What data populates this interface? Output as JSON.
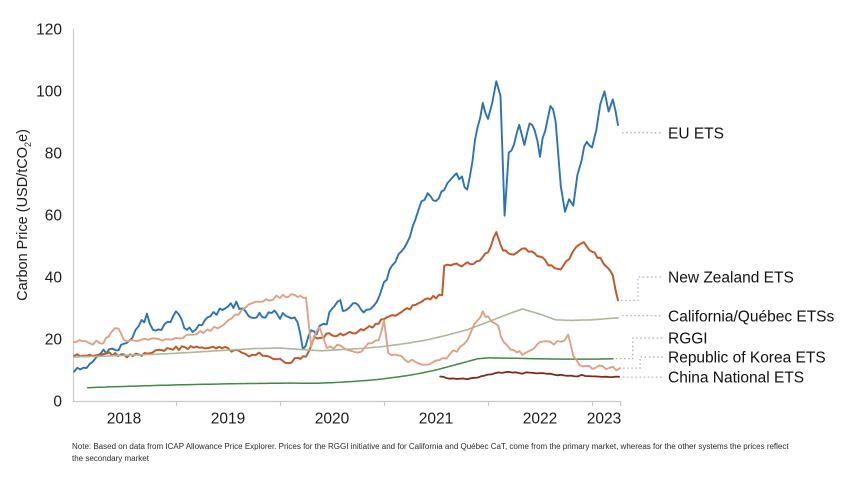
{
  "chart_data": {
    "type": "line",
    "title": "",
    "xlabel": "",
    "ylabel": "Carbon Price (USD/tCO2e)",
    "ylabel_parts": {
      "pre": "Carbon Price (USD/tCO",
      "sub": "2",
      "post": "e)"
    },
    "ylim": [
      0,
      120
    ],
    "xlim": [
      2018.0,
      2023.3
    ],
    "grid": false,
    "legend_position": "right-callouts",
    "y_ticks": [
      0,
      20,
      40,
      60,
      80,
      100,
      120
    ],
    "x_tick_marks": [
      2019,
      2020,
      2021,
      2022,
      2023,
      2023.27
    ],
    "x_tick_labels": [
      {
        "label": "2018",
        "pos": 2018.5
      },
      {
        "label": "2019",
        "pos": 2019.5
      },
      {
        "label": "2020",
        "pos": 2020.5
      },
      {
        "label": "2021",
        "pos": 2021.5
      },
      {
        "label": "2022",
        "pos": 2022.5
      },
      {
        "label": "2023",
        "pos": 2023.115
      }
    ],
    "series": [
      {
        "name": "EU ETS",
        "color": "#2b73b7",
        "width": 1.9,
        "noise": 1.3,
        "points": [
          [
            2018.02,
            9.5
          ],
          [
            2018.08,
            11
          ],
          [
            2018.17,
            12
          ],
          [
            2018.25,
            14
          ],
          [
            2018.33,
            16
          ],
          [
            2018.42,
            17
          ],
          [
            2018.5,
            18.5
          ],
          [
            2018.58,
            21
          ],
          [
            2018.67,
            25
          ],
          [
            2018.72,
            28
          ],
          [
            2018.78,
            22
          ],
          [
            2018.83,
            23
          ],
          [
            2018.92,
            25
          ],
          [
            2019,
            28
          ],
          [
            2019.08,
            24
          ],
          [
            2019.13,
            22.5
          ],
          [
            2019.25,
            25
          ],
          [
            2019.33,
            28
          ],
          [
            2019.42,
            29
          ],
          [
            2019.5,
            30
          ],
          [
            2019.58,
            31.5
          ],
          [
            2019.67,
            29
          ],
          [
            2019.75,
            27
          ],
          [
            2019.83,
            28
          ],
          [
            2019.92,
            28.5
          ],
          [
            2020,
            27
          ],
          [
            2020.08,
            28
          ],
          [
            2020.17,
            26
          ],
          [
            2020.22,
            17.5
          ],
          [
            2020.3,
            22
          ],
          [
            2020.38,
            23
          ],
          [
            2020.45,
            26
          ],
          [
            2020.5,
            30
          ],
          [
            2020.58,
            32
          ],
          [
            2020.63,
            28
          ],
          [
            2020.7,
            31
          ],
          [
            2020.78,
            30
          ],
          [
            2020.83,
            28.5
          ],
          [
            2020.9,
            31
          ],
          [
            2020.96,
            34
          ],
          [
            2021,
            38
          ],
          [
            2021.08,
            44
          ],
          [
            2021.17,
            48
          ],
          [
            2021.25,
            53
          ],
          [
            2021.33,
            62
          ],
          [
            2021.42,
            66
          ],
          [
            2021.5,
            64
          ],
          [
            2021.58,
            68
          ],
          [
            2021.67,
            73
          ],
          [
            2021.75,
            72
          ],
          [
            2021.8,
            68
          ],
          [
            2021.85,
            78
          ],
          [
            2021.9,
            88
          ],
          [
            2021.95,
            95
          ],
          [
            2022,
            90
          ],
          [
            2022.04,
            97
          ],
          [
            2022.08,
            104
          ],
          [
            2022.12,
            98
          ],
          [
            2022.16,
            60
          ],
          [
            2022.2,
            80
          ],
          [
            2022.25,
            84
          ],
          [
            2022.3,
            88
          ],
          [
            2022.35,
            82
          ],
          [
            2022.4,
            90
          ],
          [
            2022.45,
            86
          ],
          [
            2022.5,
            80
          ],
          [
            2022.55,
            87
          ],
          [
            2022.6,
            96
          ],
          [
            2022.65,
            90
          ],
          [
            2022.7,
            70
          ],
          [
            2022.74,
            62
          ],
          [
            2022.78,
            66
          ],
          [
            2022.82,
            64
          ],
          [
            2022.86,
            72
          ],
          [
            2022.9,
            78
          ],
          [
            2022.95,
            84
          ],
          [
            2023,
            82
          ],
          [
            2023.04,
            88
          ],
          [
            2023.08,
            96
          ],
          [
            2023.12,
            99
          ],
          [
            2023.16,
            94
          ],
          [
            2023.2,
            97
          ],
          [
            2023.25,
            89
          ]
        ]
      },
      {
        "name": "New Zealand ETS",
        "color": "#c05a2d",
        "width": 2.0,
        "noise": 0.6,
        "points": [
          [
            2018.02,
            14.5
          ],
          [
            2018.17,
            15
          ],
          [
            2018.33,
            15.5
          ],
          [
            2018.5,
            14.5
          ],
          [
            2018.67,
            15
          ],
          [
            2018.83,
            16
          ],
          [
            2019,
            17
          ],
          [
            2019.17,
            17.3
          ],
          [
            2019.33,
            17.2
          ],
          [
            2019.5,
            16.8
          ],
          [
            2019.6,
            15.8
          ],
          [
            2019.7,
            14.8
          ],
          [
            2019.8,
            15.2
          ],
          [
            2019.9,
            14.5
          ],
          [
            2020,
            13.2
          ],
          [
            2020.08,
            12.5
          ],
          [
            2020.17,
            13.5
          ],
          [
            2020.25,
            14.5
          ],
          [
            2020.33,
            20.5
          ],
          [
            2020.42,
            21
          ],
          [
            2020.5,
            21.5
          ],
          [
            2020.58,
            21.2
          ],
          [
            2020.67,
            22
          ],
          [
            2020.75,
            22.5
          ],
          [
            2020.83,
            23.5
          ],
          [
            2020.92,
            24.5
          ],
          [
            2021,
            26.5
          ],
          [
            2021.08,
            27.5
          ],
          [
            2021.17,
            28.5
          ],
          [
            2021.25,
            30
          ],
          [
            2021.33,
            31.5
          ],
          [
            2021.42,
            33
          ],
          [
            2021.5,
            33.5
          ],
          [
            2021.56,
            34
          ],
          [
            2021.58,
            43.5
          ],
          [
            2021.67,
            44.5
          ],
          [
            2021.75,
            44
          ],
          [
            2021.83,
            44.5
          ],
          [
            2021.92,
            45
          ],
          [
            2022,
            48
          ],
          [
            2022.08,
            54.5
          ],
          [
            2022.12,
            50
          ],
          [
            2022.17,
            48
          ],
          [
            2022.25,
            47
          ],
          [
            2022.33,
            49
          ],
          [
            2022.42,
            48
          ],
          [
            2022.5,
            46.5
          ],
          [
            2022.58,
            44
          ],
          [
            2022.7,
            42
          ],
          [
            2022.78,
            46
          ],
          [
            2022.85,
            50
          ],
          [
            2022.92,
            51
          ],
          [
            2023,
            48
          ],
          [
            2023.08,
            46
          ],
          [
            2023.15,
            43
          ],
          [
            2023.2,
            40
          ],
          [
            2023.25,
            32.5
          ]
        ]
      },
      {
        "name": "California/Québec ETSs",
        "color": "#a9ba97",
        "width": 1.6,
        "noise": 0,
        "points": [
          [
            2018.02,
            14.2
          ],
          [
            2018.25,
            14.4
          ],
          [
            2018.5,
            14.7
          ],
          [
            2018.75,
            15
          ],
          [
            2019,
            15.4
          ],
          [
            2019.25,
            15.9
          ],
          [
            2019.5,
            16.4
          ],
          [
            2019.75,
            16.9
          ],
          [
            2020,
            17.1
          ],
          [
            2020.2,
            16.6
          ],
          [
            2020.4,
            16.2
          ],
          [
            2020.6,
            16.6
          ],
          [
            2020.8,
            17
          ],
          [
            2021,
            17.6
          ],
          [
            2021.2,
            18.5
          ],
          [
            2021.4,
            19.6
          ],
          [
            2021.6,
            21.2
          ],
          [
            2021.8,
            23
          ],
          [
            2022,
            25.5
          ],
          [
            2022.15,
            27.5
          ],
          [
            2022.33,
            29.7
          ],
          [
            2022.5,
            28
          ],
          [
            2022.65,
            26.2
          ],
          [
            2022.8,
            26
          ],
          [
            2023,
            26.2
          ],
          [
            2023.25,
            26.8
          ]
        ]
      },
      {
        "name": "RGGI",
        "color": "#3f8a46",
        "width": 1.5,
        "noise": 0,
        "points": [
          [
            2018.15,
            4.3
          ],
          [
            2018.4,
            4.6
          ],
          [
            2018.7,
            4.9
          ],
          [
            2019,
            5.2
          ],
          [
            2019.3,
            5.4
          ],
          [
            2019.6,
            5.6
          ],
          [
            2019.9,
            5.7
          ],
          [
            2020.1,
            5.8
          ],
          [
            2020.3,
            5.7
          ],
          [
            2020.5,
            5.9
          ],
          [
            2020.7,
            6.3
          ],
          [
            2020.9,
            6.8
          ],
          [
            2021.1,
            7.6
          ],
          [
            2021.3,
            8.6
          ],
          [
            2021.5,
            10
          ],
          [
            2021.7,
            11.8
          ],
          [
            2021.9,
            13.6
          ],
          [
            2022,
            13.9
          ],
          [
            2022.25,
            13.8
          ],
          [
            2022.5,
            13.6
          ],
          [
            2022.75,
            13.5
          ],
          [
            2023,
            13.5
          ],
          [
            2023.2,
            13.6
          ]
        ]
      },
      {
        "name": "Republic of Korea ETS",
        "color": "#dfa183",
        "width": 1.9,
        "noise": 0.7,
        "points": [
          [
            2018.02,
            19
          ],
          [
            2018.1,
            19.2
          ],
          [
            2018.2,
            18.8
          ],
          [
            2018.3,
            19
          ],
          [
            2018.38,
            22.5
          ],
          [
            2018.45,
            23.8
          ],
          [
            2018.5,
            20
          ],
          [
            2018.6,
            19.3
          ],
          [
            2018.7,
            19.5
          ],
          [
            2018.8,
            19.6
          ],
          [
            2018.9,
            19.8
          ],
          [
            2019,
            20.3
          ],
          [
            2019.1,
            21
          ],
          [
            2019.2,
            21.8
          ],
          [
            2019.3,
            22.5
          ],
          [
            2019.4,
            24
          ],
          [
            2019.5,
            26
          ],
          [
            2019.6,
            28.5
          ],
          [
            2019.7,
            31
          ],
          [
            2019.8,
            32
          ],
          [
            2019.9,
            33
          ],
          [
            2020,
            33.5
          ],
          [
            2020.08,
            34.2
          ],
          [
            2020.17,
            33.5
          ],
          [
            2020.25,
            33
          ],
          [
            2020.3,
            18
          ],
          [
            2020.38,
            24.5
          ],
          [
            2020.45,
            16.5
          ],
          [
            2020.55,
            18
          ],
          [
            2020.65,
            17
          ],
          [
            2020.75,
            16
          ],
          [
            2020.85,
            18
          ],
          [
            2020.95,
            19.5
          ],
          [
            2021,
            25.5
          ],
          [
            2021.04,
            15
          ],
          [
            2021.1,
            14.5
          ],
          [
            2021.2,
            13.5
          ],
          [
            2021.3,
            12.5
          ],
          [
            2021.4,
            11.8
          ],
          [
            2021.5,
            12.5
          ],
          [
            2021.6,
            14
          ],
          [
            2021.7,
            16.5
          ],
          [
            2021.8,
            20
          ],
          [
            2021.9,
            26
          ],
          [
            2021.95,
            28.3
          ],
          [
            2022,
            27
          ],
          [
            2022.1,
            23.5
          ],
          [
            2022.15,
            19
          ],
          [
            2022.25,
            16
          ],
          [
            2022.33,
            15.5
          ],
          [
            2022.42,
            17
          ],
          [
            2022.5,
            18.5
          ],
          [
            2022.6,
            18.7
          ],
          [
            2022.7,
            19
          ],
          [
            2022.77,
            21.3
          ],
          [
            2022.82,
            14
          ],
          [
            2022.88,
            12
          ],
          [
            2022.95,
            11.5
          ],
          [
            2023,
            11
          ],
          [
            2023.1,
            10.8
          ],
          [
            2023.2,
            10.5
          ],
          [
            2023.27,
            10.6
          ]
        ]
      },
      {
        "name": "China National ETS",
        "color": "#7d2a22",
        "width": 1.8,
        "noise": 0.25,
        "points": [
          [
            2021.54,
            7.9
          ],
          [
            2021.6,
            7.4
          ],
          [
            2021.7,
            6.9
          ],
          [
            2021.8,
            7.2
          ],
          [
            2021.9,
            7.4
          ],
          [
            2022,
            8.6
          ],
          [
            2022.1,
            9
          ],
          [
            2022.2,
            9.2
          ],
          [
            2022.3,
            9
          ],
          [
            2022.4,
            9.1
          ],
          [
            2022.5,
            9
          ],
          [
            2022.6,
            8.9
          ],
          [
            2022.7,
            8.2
          ],
          [
            2022.8,
            8
          ],
          [
            2022.9,
            8.3
          ],
          [
            2023,
            8.1
          ],
          [
            2023.1,
            8
          ],
          [
            2023.2,
            7.9
          ],
          [
            2023.26,
            7.8
          ]
        ]
      }
    ],
    "legend": [
      {
        "label": "EU ETS",
        "series": "EU ETS",
        "label_value": 86.5
      },
      {
        "label": "New Zealand ETS",
        "series": "New Zealand ETS",
        "label_value": 40
      },
      {
        "label": "California/Québec ETSs",
        "series": "California/Québec ETSs",
        "label_value": 27.5
      },
      {
        "label": "RGGI",
        "series": "RGGI",
        "label_value": 20.3
      },
      {
        "label": "Republic of Korea ETS",
        "series": "Republic of Korea ETS",
        "label_value": 14.2
      },
      {
        "label": "China National ETS",
        "series": "China National ETS",
        "label_value": 7.7
      }
    ]
  },
  "note": {
    "line1": "Note: Based on data from ICAP Allowance Price Explorer. Prices for the RGGI initiative and for California and Québec CaT, come from the primary market, whereas for the other systems the prices reflect",
    "line2": "the secondary market"
  }
}
